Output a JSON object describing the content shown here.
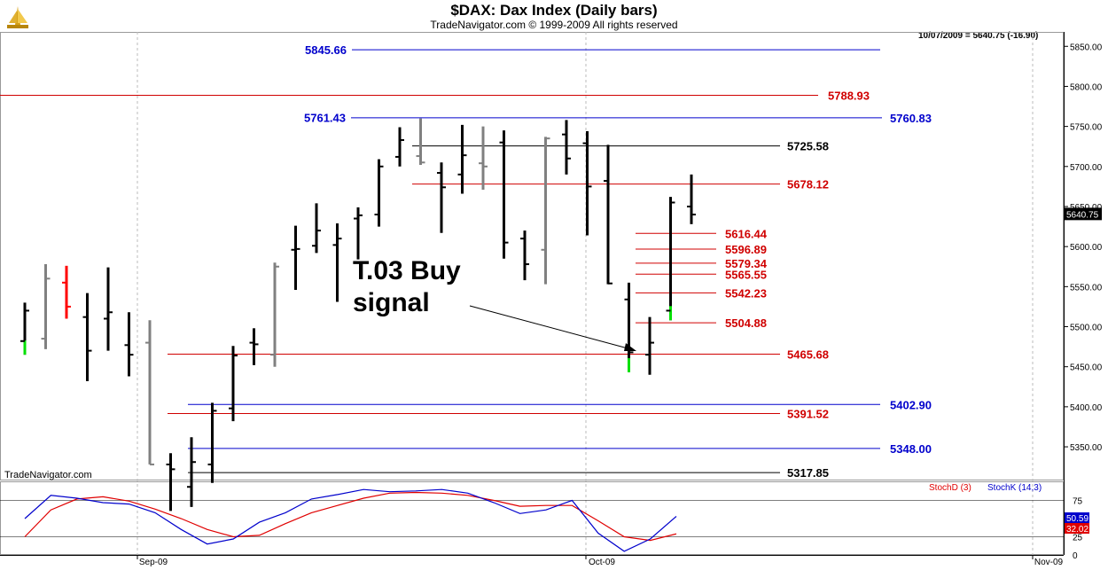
{
  "header": {
    "title": "$DAX:  Dax Index  (Daily bars)",
    "copyright": "TradeNavigator.com © 1999-2009 All rights reserved",
    "readout": "10/07/2009 = 5640.75 (-16.90)",
    "brand": "TradeNavigator.com"
  },
  "annotation": {
    "line1": "T.03 Buy",
    "line2": "signal"
  },
  "colors": {
    "up_bar": "#000000",
    "gray_bar": "#808080",
    "green_tail": "#00e000",
    "red_tail": "#ff0000",
    "blue_level": "#0000cc",
    "red_level": "#d00000",
    "black_level": "#000000",
    "grid": "#bbbbbb",
    "stoch_d": "#e00000",
    "stoch_k": "#0000cc"
  },
  "stochastic": {
    "d_label": "StochD (3)",
    "k_label": "StochK (14,3)",
    "k_value": "50.59",
    "d_value": "32.02",
    "ticks": [
      "75",
      "25",
      "0"
    ],
    "d_values": [
      25,
      62,
      77,
      80,
      74,
      63,
      50,
      35,
      25,
      27,
      43,
      58,
      68,
      78,
      85,
      86,
      85,
      82,
      75,
      67,
      68,
      68,
      47,
      25,
      20,
      29
    ],
    "k_values": [
      50,
      82,
      78,
      72,
      70,
      58,
      35,
      15,
      22,
      45,
      58,
      77,
      83,
      90,
      87,
      88,
      90,
      85,
      72,
      57,
      62,
      75,
      30,
      5,
      22,
      53
    ]
  },
  "chart_data": {
    "type": "bar",
    "subtype": "ohlc",
    "title": "$DAX:  Dax Index  (Daily bars)",
    "y_axis_ticks": [
      "5850.00",
      "5800.00",
      "5750.00",
      "5700.00",
      "5650.00",
      "5600.00",
      "5550.00",
      "5500.00",
      "5450.00",
      "5400.00",
      "5350.00"
    ],
    "ylim": [
      5308,
      5868
    ],
    "x_axis_labels": [
      "Sep-09",
      "Oct-09",
      "Nov-09"
    ],
    "last_price_label": "5640.75",
    "grid": "vertical dotted at month starts",
    "bars": [
      {
        "h": 5530,
        "l": 5465,
        "o": 5482,
        "c": 5520,
        "tail": "green"
      },
      {
        "h": 5578,
        "l": 5472,
        "o": 5485,
        "c": 5560,
        "tail": "gray"
      },
      {
        "h": 5576,
        "l": 5510,
        "o": 5555,
        "c": 5525,
        "tail": "red"
      },
      {
        "h": 5542,
        "l": 5432,
        "o": 5512,
        "c": 5470,
        "tail": "black"
      },
      {
        "h": 5574,
        "l": 5470,
        "o": 5510,
        "c": 5518,
        "tail": "black"
      },
      {
        "h": 5518,
        "l": 5438,
        "o": 5477,
        "c": 5465,
        "tail": "black"
      },
      {
        "h": 5508,
        "l": 5328,
        "o": 5480,
        "c": 5328,
        "tail": "gray"
      },
      {
        "h": 5342,
        "l": 5270,
        "o": 5328,
        "c": 5322,
        "tail": "black"
      },
      {
        "h": 5362,
        "l": 5275,
        "o": 5300,
        "c": 5331,
        "tail": "black"
      },
      {
        "h": 5405,
        "l": 5305,
        "o": 5328,
        "c": 5395,
        "tail": "black"
      },
      {
        "h": 5476,
        "l": 5382,
        "o": 5398,
        "c": 5464,
        "tail": "black"
      },
      {
        "h": 5498,
        "l": 5452,
        "o": 5480,
        "c": 5478,
        "tail": "black"
      },
      {
        "h": 5580,
        "l": 5450,
        "o": 5465,
        "c": 5575,
        "tail": "gray"
      },
      {
        "h": 5626,
        "l": 5546,
        "o": 5596,
        "c": 5597,
        "tail": "black"
      },
      {
        "h": 5654,
        "l": 5592,
        "o": 5601,
        "c": 5620,
        "tail": "black"
      },
      {
        "h": 5629,
        "l": 5531,
        "o": 5602,
        "c": 5610,
        "tail": "black"
      },
      {
        "h": 5649,
        "l": 5584,
        "o": 5635,
        "c": 5639,
        "tail": "black"
      },
      {
        "h": 5709,
        "l": 5625,
        "o": 5640,
        "c": 5700,
        "tail": "black"
      },
      {
        "h": 5749,
        "l": 5700,
        "o": 5712,
        "c": 5733,
        "tail": "black"
      },
      {
        "h": 5760,
        "l": 5702,
        "o": 5713,
        "c": 5705,
        "tail": "gray"
      },
      {
        "h": 5705,
        "l": 5617,
        "o": 5692,
        "c": 5674,
        "tail": "black"
      },
      {
        "h": 5752,
        "l": 5666,
        "o": 5690,
        "c": 5714,
        "tail": "black"
      },
      {
        "h": 5750,
        "l": 5671,
        "o": 5704,
        "c": 5700,
        "tail": "gray"
      },
      {
        "h": 5745,
        "l": 5585,
        "o": 5730,
        "c": 5605,
        "tail": "black"
      },
      {
        "h": 5620,
        "l": 5558,
        "o": 5610,
        "c": 5578,
        "tail": "black"
      },
      {
        "h": 5737,
        "l": 5553,
        "o": 5596,
        "c": 5735,
        "tail": "gray"
      },
      {
        "h": 5758,
        "l": 5690,
        "o": 5740,
        "c": 5710,
        "tail": "black"
      },
      {
        "h": 5744,
        "l": 5614,
        "o": 5729,
        "c": 5675,
        "tail": "black"
      },
      {
        "h": 5727,
        "l": 5553,
        "o": 5682,
        "c": 5554,
        "tail": "black"
      },
      {
        "h": 5555,
        "l": 5443,
        "o": 5534,
        "c": 5468,
        "tail": "green"
      },
      {
        "h": 5512,
        "l": 5440,
        "o": 5465,
        "c": 5480,
        "tail": "black"
      },
      {
        "h": 5662,
        "l": 5508,
        "o": 5520,
        "c": 5655,
        "tail": "green"
      },
      {
        "h": 5690,
        "l": 5628,
        "o": 5650,
        "c": 5640,
        "tail": "black"
      }
    ],
    "levels": [
      {
        "value": 5845.66,
        "label": "5845.66",
        "color": "blue",
        "label_side": "left"
      },
      {
        "value": 5788.93,
        "label": "5788.93",
        "color": "red",
        "label_side": "right"
      },
      {
        "value": 5761.43,
        "label": "5761.43",
        "color": "blue",
        "label_side": "left"
      },
      {
        "value": 5760.83,
        "label": "5760.83",
        "color": "blue",
        "label_side": "right"
      },
      {
        "value": 5725.58,
        "label": "5725.58",
        "color": "black",
        "label_side": "right"
      },
      {
        "value": 5678.12,
        "label": "5678.12",
        "color": "red",
        "label_side": "right"
      },
      {
        "value": 5616.44,
        "label": "5616.44",
        "color": "red",
        "label_side": "right"
      },
      {
        "value": 5596.89,
        "label": "5596.89",
        "color": "red",
        "label_side": "right"
      },
      {
        "value": 5579.34,
        "label": "5579.34",
        "color": "red",
        "label_side": "right"
      },
      {
        "value": 5565.55,
        "label": "5565.55",
        "color": "red",
        "label_side": "right"
      },
      {
        "value": 5542.23,
        "label": "5542.23",
        "color": "red",
        "label_side": "right"
      },
      {
        "value": 5504.88,
        "label": "5504.88",
        "color": "red",
        "label_side": "right"
      },
      {
        "value": 5465.68,
        "label": "5465.68",
        "color": "red",
        "label_side": "right"
      },
      {
        "value": 5402.9,
        "label": "5402.90",
        "color": "blue",
        "label_side": "right"
      },
      {
        "value": 5391.52,
        "label": "5391.52",
        "color": "red",
        "label_side": "right"
      },
      {
        "value": 5348.0,
        "label": "5348.00",
        "color": "blue",
        "label_side": "right"
      },
      {
        "value": 5317.85,
        "label": "5317.85",
        "color": "black",
        "label_side": "right"
      }
    ]
  }
}
